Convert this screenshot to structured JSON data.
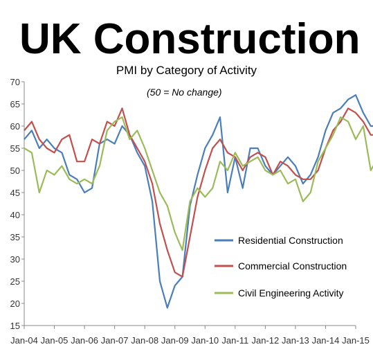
{
  "headline": "UK Construction",
  "chart_data": {
    "type": "line",
    "title": "PMI by Category of Activity",
    "annotation": "(50 = No change)",
    "xlabel": "",
    "ylabel": "",
    "ylim": [
      15,
      70
    ],
    "yticks": [
      15,
      20,
      25,
      30,
      35,
      40,
      45,
      50,
      55,
      60,
      65,
      70
    ],
    "xlim": [
      "Jan-04",
      "Jan-15"
    ],
    "xticks": [
      "Jan-04",
      "Jan-05",
      "Jan-06",
      "Jan-07",
      "Jan-08",
      "Jan-09",
      "Jan-10",
      "Jan-11",
      "Jan-12",
      "Jan-13",
      "Jan-14",
      "Jan-15"
    ],
    "grid": false,
    "legend_position": "bottom-right",
    "x_points_per_year": 4,
    "series": [
      {
        "name": "Residential Construction",
        "color": "#4a7ebb",
        "values": [
          57,
          59,
          55,
          57,
          55,
          54,
          49,
          48,
          45,
          46,
          56,
          57,
          56,
          60,
          58,
          54,
          51,
          43,
          25,
          19,
          24,
          26,
          42,
          49,
          55,
          58,
          62,
          45,
          53,
          46,
          55,
          55,
          51,
          49,
          51,
          53,
          51,
          47,
          49,
          53,
          59,
          63,
          64,
          66,
          67,
          63,
          60,
          60
        ]
      },
      {
        "name": "Commercial Construction",
        "color": "#c0504d",
        "values": [
          59,
          61,
          57,
          55,
          54,
          57,
          58,
          52,
          52,
          57,
          56,
          61,
          60,
          64,
          58,
          55,
          52,
          47,
          38,
          32,
          27,
          26,
          35,
          44,
          50,
          55,
          57,
          54,
          53,
          50,
          53,
          54,
          53,
          49,
          52,
          51,
          49,
          48,
          48,
          50,
          55,
          59,
          61,
          64,
          63,
          61,
          58,
          58
        ]
      },
      {
        "name": "Civil Engineering Activity",
        "color": "#9bbb59",
        "values": [
          55,
          54,
          45,
          50,
          49,
          51,
          48,
          47,
          48,
          47,
          51,
          59,
          61,
          62,
          57,
          59,
          55,
          50,
          45,
          42,
          36,
          32,
          43,
          46,
          44,
          46,
          52,
          50,
          54,
          51,
          52,
          53,
          50,
          49,
          50,
          47,
          48,
          43,
          45,
          52,
          55,
          58,
          62,
          61,
          57,
          60,
          50,
          53
        ]
      }
    ]
  }
}
